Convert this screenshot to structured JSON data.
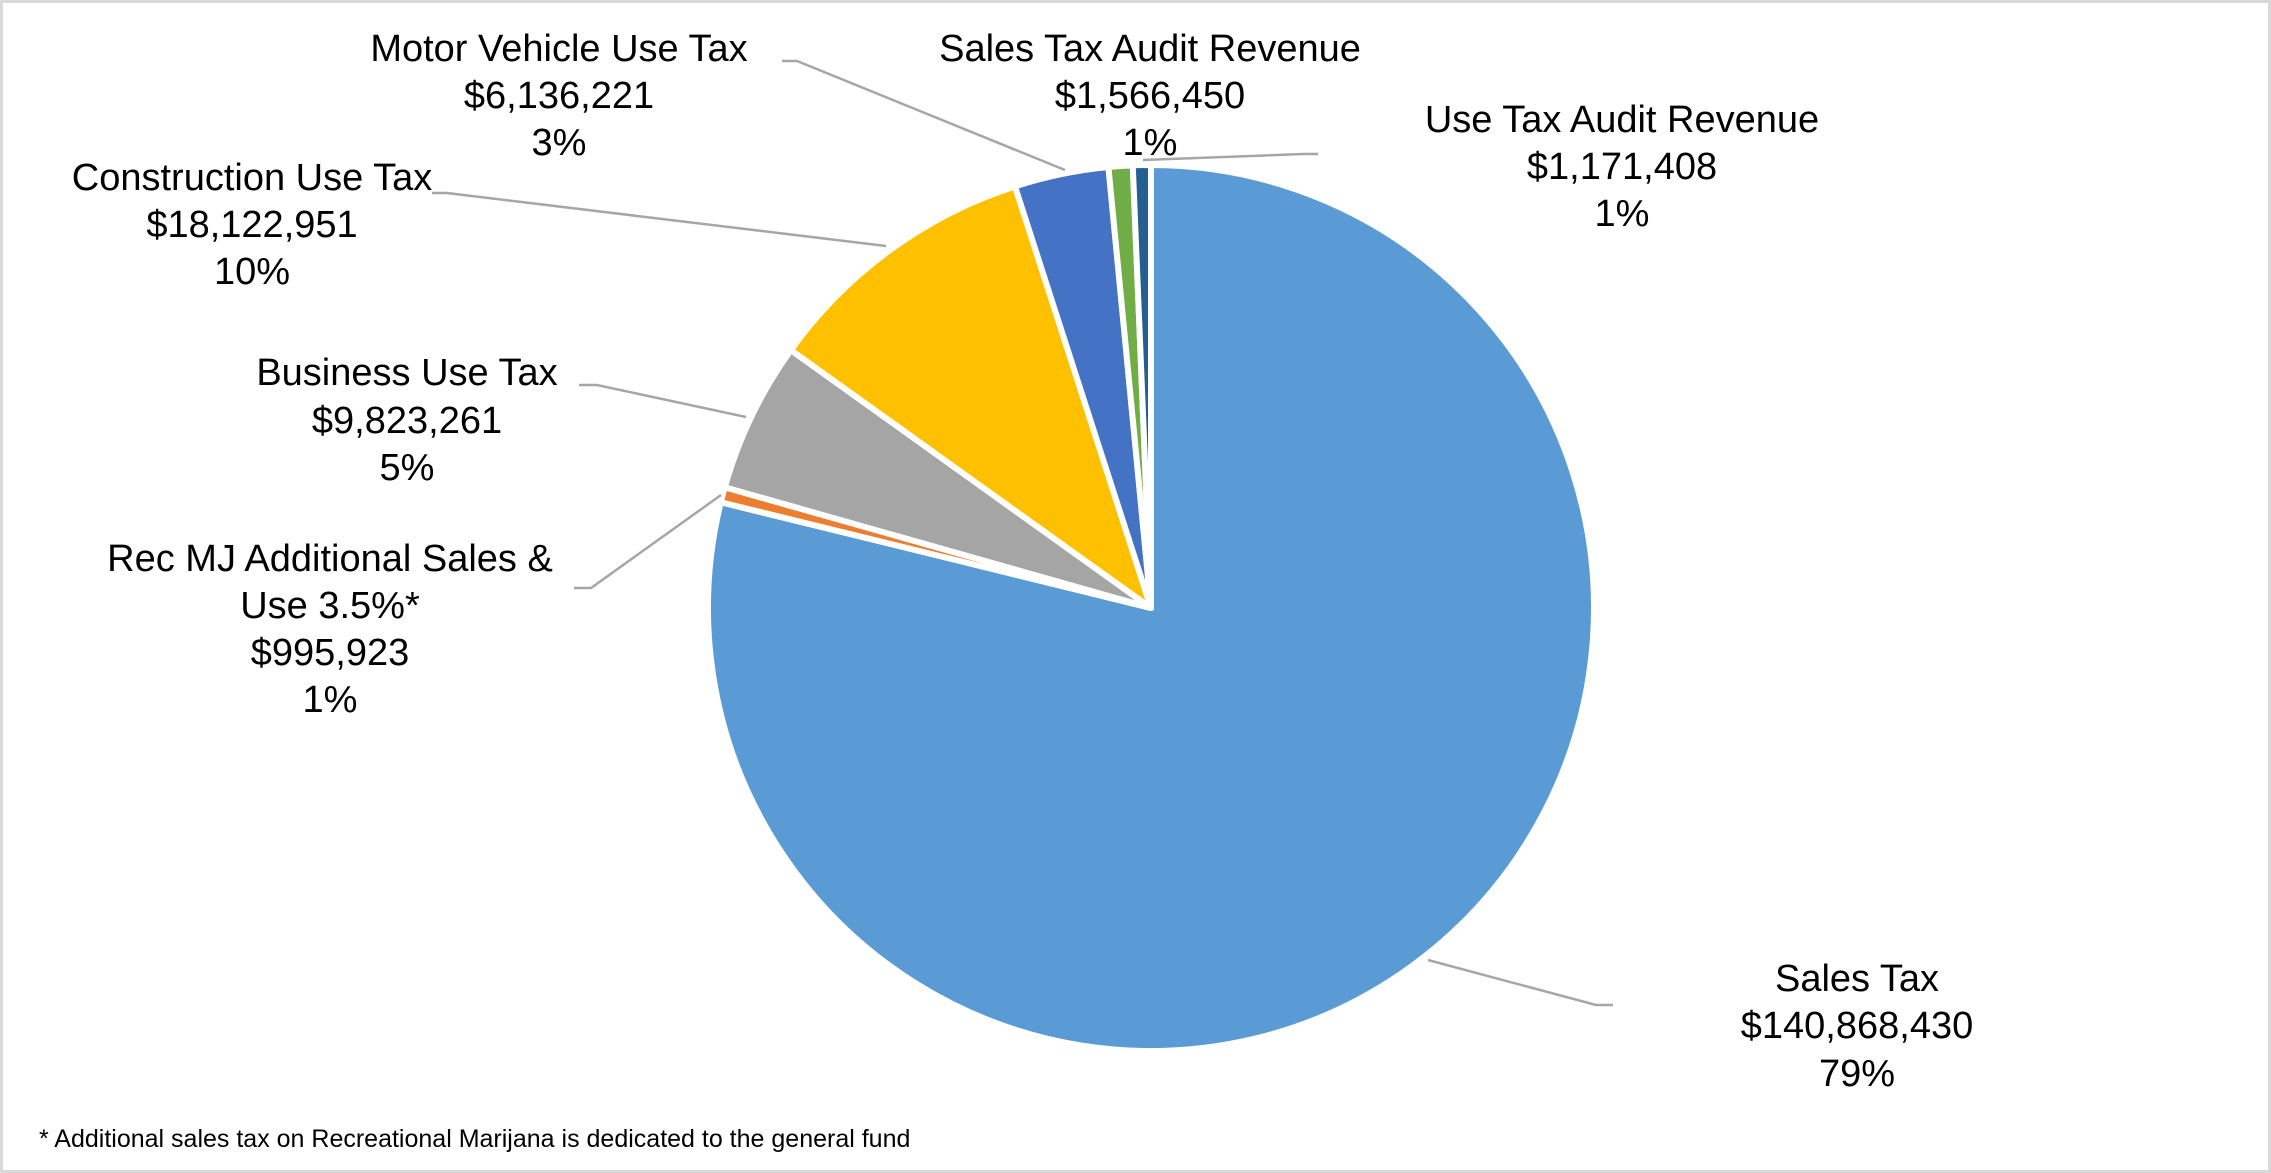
{
  "chart_data": {
    "type": "pie",
    "start_angle_deg": 0,
    "direction": "clockwise",
    "slices": [
      {
        "label": "Sales Tax",
        "value": 140868430,
        "value_label": "$140,868,430",
        "percent_label": "79%",
        "color": "#5B9BD5"
      },
      {
        "label": "Rec MJ Additional Sales &",
        "label2": "Use 3.5%*",
        "value": 995923,
        "value_label": "$995,923",
        "percent_label": "1%",
        "color": "#ED7D31"
      },
      {
        "label": "Business Use Tax",
        "value": 9823261,
        "value_label": "$9,823,261",
        "percent_label": "5%",
        "color": "#A5A5A5"
      },
      {
        "label": "Construction Use Tax",
        "value": 18122951,
        "value_label": "$18,122,951",
        "percent_label": "10%",
        "color": "#FFC000"
      },
      {
        "label": "Motor Vehicle Use Tax",
        "value": 6136221,
        "value_label": "$6,136,221",
        "percent_label": "3%",
        "color": "#4472C4"
      },
      {
        "label": "Sales Tax Audit Revenue",
        "value": 1566450,
        "value_label": "$1,566,450",
        "percent_label": "1%",
        "color": "#70AD47"
      },
      {
        "label": "Use Tax Audit Revenue",
        "value": 1171408,
        "value_label": "$1,171,408",
        "percent_label": "1%",
        "color": "#255E91"
      }
    ],
    "footnote": "* Additional sales tax on Recreational Marijana is dedicated to the general fund",
    "legend": "none"
  }
}
